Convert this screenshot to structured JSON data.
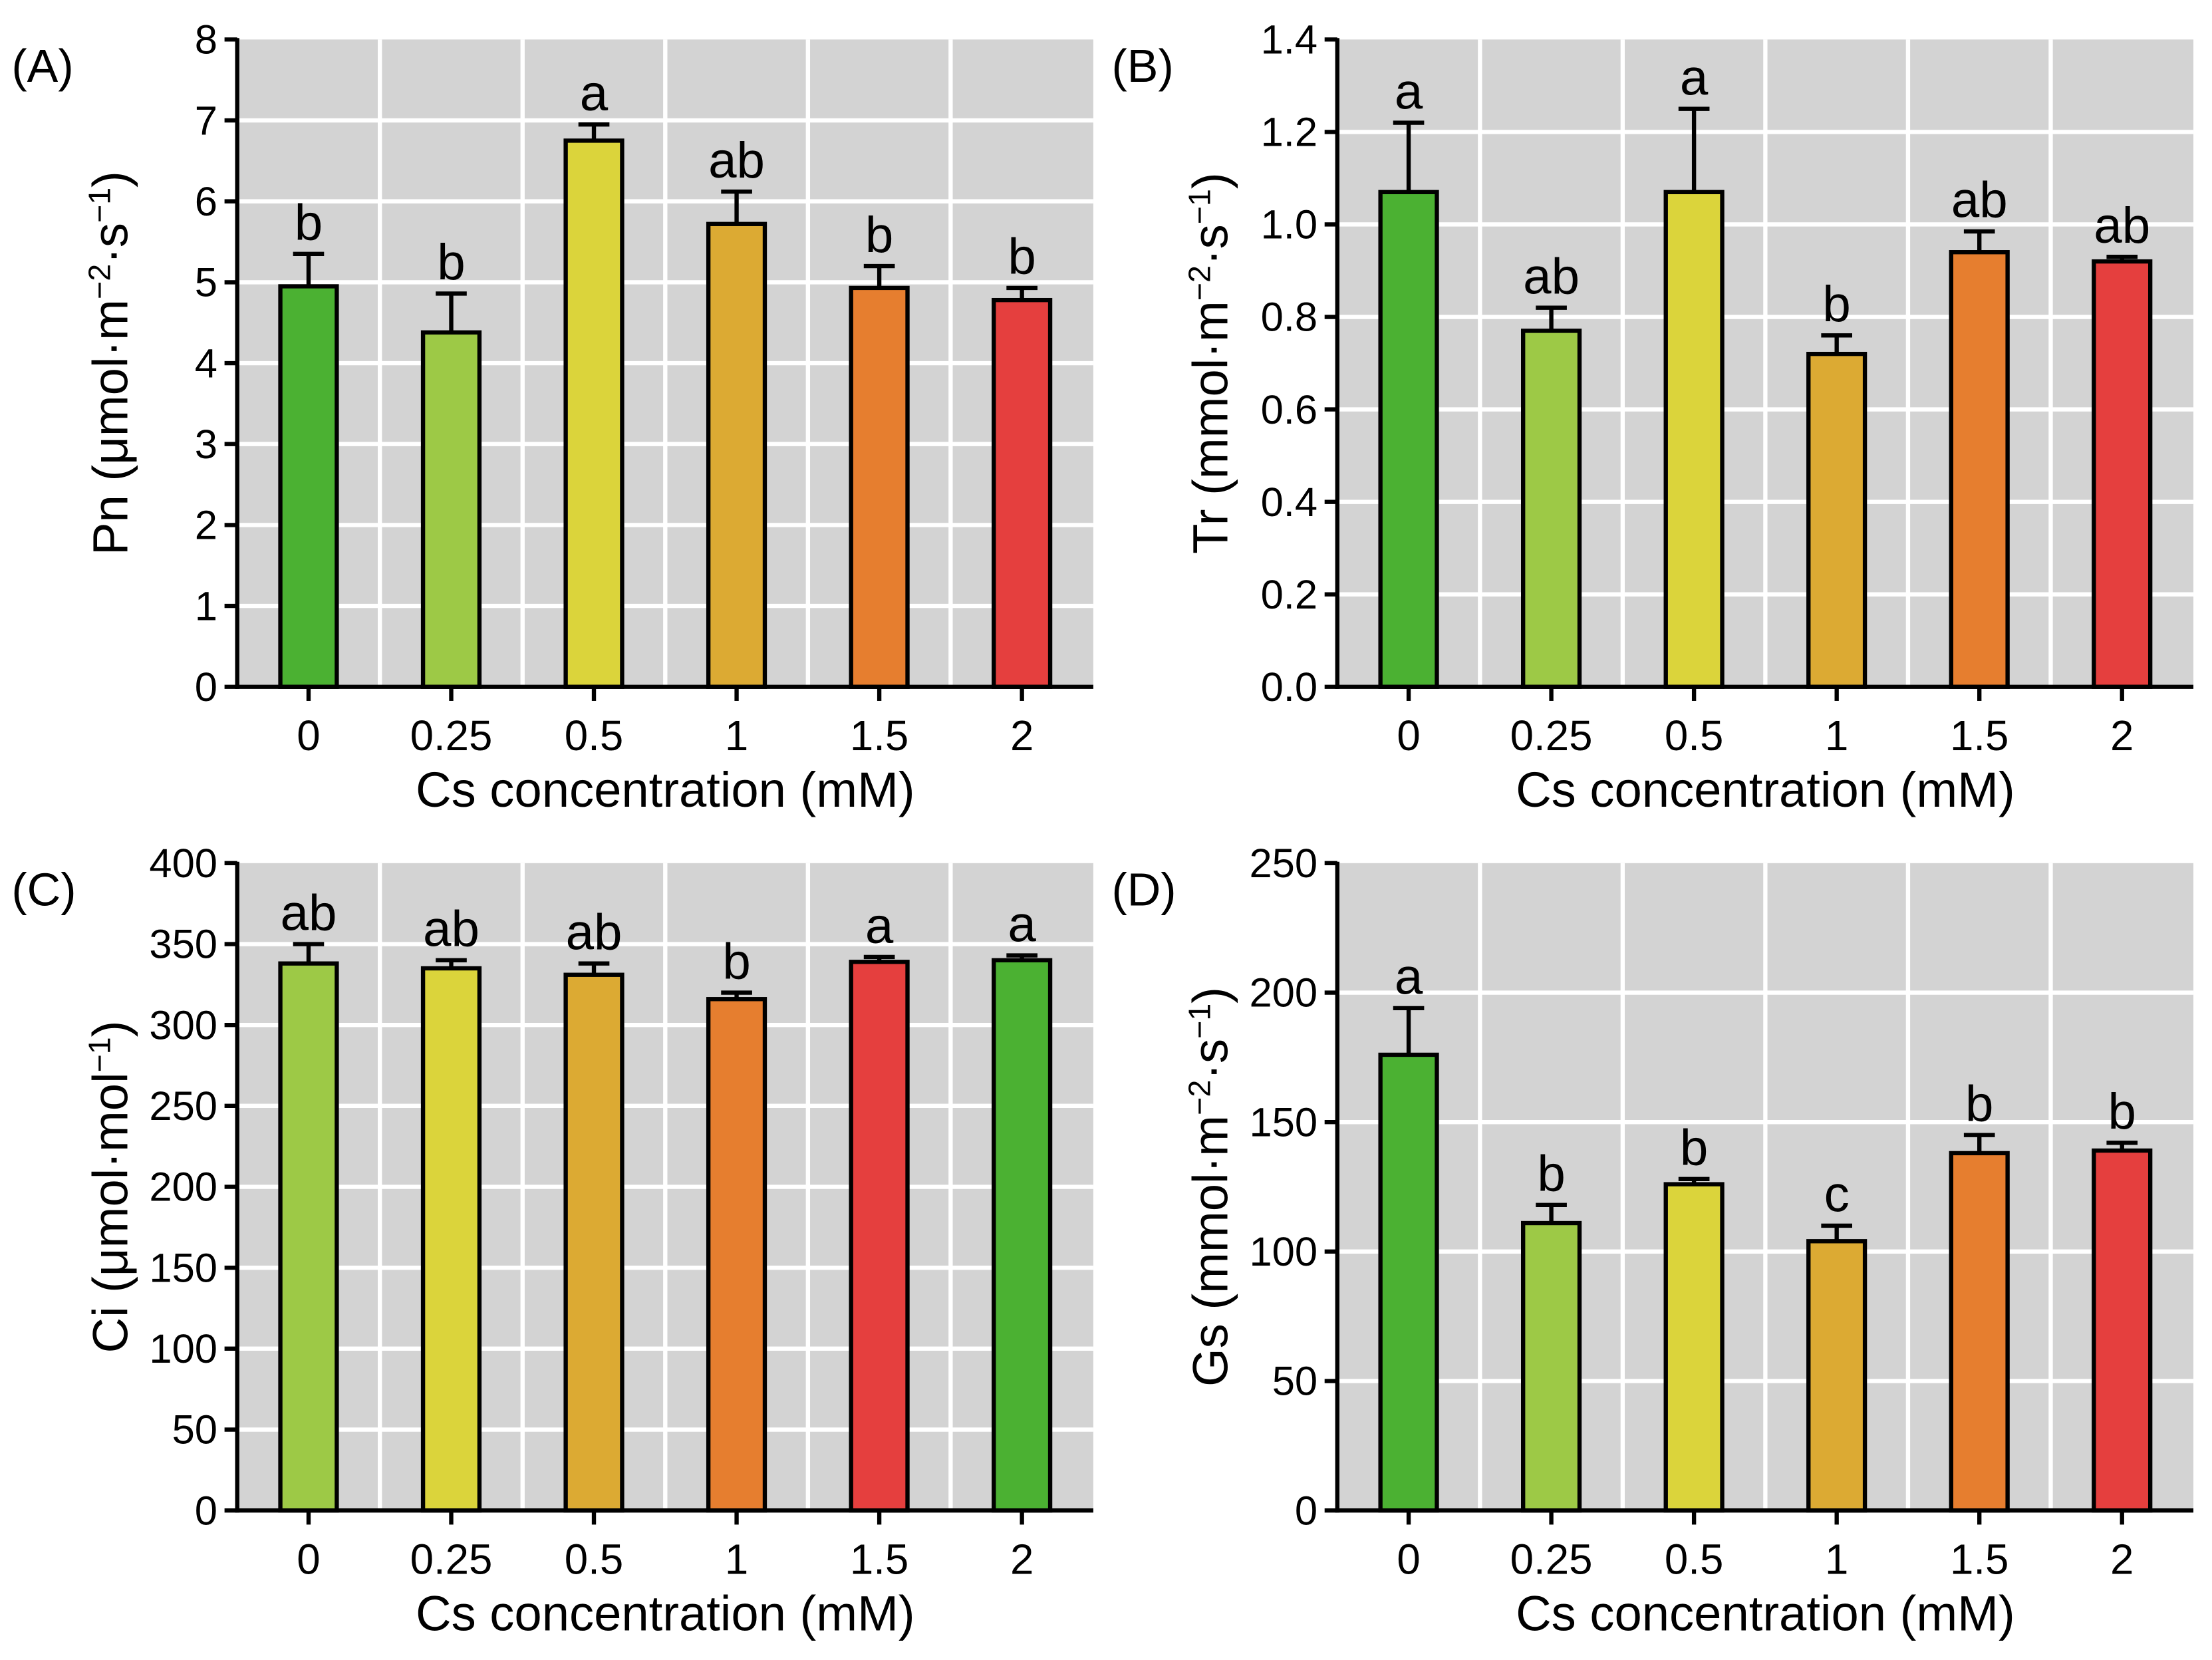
{
  "colors": {
    "green": "#4bb132",
    "lightgreen": "#9dc946",
    "yellow": "#dbd43b",
    "gold": "#dcaa33",
    "orange": "#e67e2f",
    "red": "#e53f3e",
    "panel_bg": "#d3d3d3",
    "grid": "#ffffff"
  },
  "chart_data": [
    {
      "type": "bar",
      "panel_label": "(A)",
      "categories": [
        "0",
        "0.25",
        "0.5",
        "1",
        "1.5",
        "2"
      ],
      "values": [
        4.95,
        4.38,
        6.75,
        5.72,
        4.93,
        4.78
      ],
      "errors": [
        0.4,
        0.48,
        0.2,
        0.4,
        0.27,
        0.15
      ],
      "letters": [
        "b",
        "b",
        "a",
        "ab",
        "b",
        "b"
      ],
      "bar_colors": [
        "green",
        "lightgreen",
        "yellow",
        "gold",
        "orange",
        "red"
      ],
      "ylim": [
        0,
        8
      ],
      "yticks": [
        "0",
        "1",
        "2",
        "3",
        "4",
        "5",
        "6",
        "7",
        "8"
      ],
      "ylabel": [
        {
          "t": "Pn (μmol·m"
        },
        {
          "t": "−2",
          "sup": true
        },
        {
          "t": "·s"
        },
        {
          "t": "−1",
          "sup": true
        },
        {
          "t": ")"
        }
      ],
      "xlabel": "Cs concentration (mM)",
      "grid": true
    },
    {
      "type": "bar",
      "panel_label": "(B)",
      "categories": [
        "0",
        "0.25",
        "0.5",
        "1",
        "1.5",
        "2"
      ],
      "values": [
        1.07,
        0.77,
        1.07,
        0.72,
        0.94,
        0.92
      ],
      "errors": [
        0.15,
        0.05,
        0.18,
        0.04,
        0.045,
        0.01
      ],
      "letters": [
        "a",
        "ab",
        "a",
        "b",
        "ab",
        "ab"
      ],
      "bar_colors": [
        "green",
        "lightgreen",
        "yellow",
        "gold",
        "orange",
        "red"
      ],
      "ylim": [
        0,
        1.4
      ],
      "yticks": [
        "0.0",
        "0.2",
        "0.4",
        "0.6",
        "0.8",
        "1.0",
        "1.2",
        "1.4"
      ],
      "ylabel": [
        {
          "t": "Tr (mmol·m"
        },
        {
          "t": "−2",
          "sup": true
        },
        {
          "t": "·s"
        },
        {
          "t": "−1",
          "sup": true
        },
        {
          "t": ")"
        }
      ],
      "xlabel": "Cs concentration (mM)",
      "grid": true
    },
    {
      "type": "bar",
      "panel_label": "(C)",
      "categories": [
        "0",
        "0.25",
        "0.5",
        "1",
        "1.5",
        "2"
      ],
      "values": [
        338,
        335,
        331,
        316,
        339,
        340
      ],
      "errors": [
        12,
        5,
        7,
        4,
        3,
        3
      ],
      "letters": [
        "ab",
        "ab",
        "ab",
        "b",
        "a",
        "a"
      ],
      "bar_colors": [
        "lightgreen",
        "yellow",
        "gold",
        "orange",
        "red",
        "green"
      ],
      "ylim": [
        0,
        400
      ],
      "yticks": [
        "0",
        "50",
        "100",
        "150",
        "200",
        "250",
        "300",
        "350",
        "400"
      ],
      "ylabel": [
        {
          "t": "Ci (μmol·mol"
        },
        {
          "t": "−1",
          "sup": true
        },
        {
          "t": ")"
        }
      ],
      "xlabel": "Cs concentration (mM)",
      "grid": true
    },
    {
      "type": "bar",
      "panel_label": "(D)",
      "categories": [
        "0",
        "0.25",
        "0.5",
        "1",
        "1.5",
        "2"
      ],
      "values": [
        176,
        111,
        126,
        104,
        138,
        139
      ],
      "errors": [
        18,
        7,
        2,
        6,
        7,
        3
      ],
      "letters": [
        "a",
        "b",
        "b",
        "c",
        "b",
        "b"
      ],
      "bar_colors": [
        "green",
        "lightgreen",
        "yellow",
        "gold",
        "orange",
        "red"
      ],
      "ylim": [
        0,
        250
      ],
      "yticks": [
        "0",
        "50",
        "100",
        "150",
        "200",
        "250"
      ],
      "ylabel": [
        {
          "t": "Gs (mmol·m"
        },
        {
          "t": "−2",
          "sup": true
        },
        {
          "t": "·s"
        },
        {
          "t": "−1",
          "sup": true
        },
        {
          "t": ")"
        }
      ],
      "xlabel": "Cs concentration (mM)",
      "grid": true
    }
  ]
}
